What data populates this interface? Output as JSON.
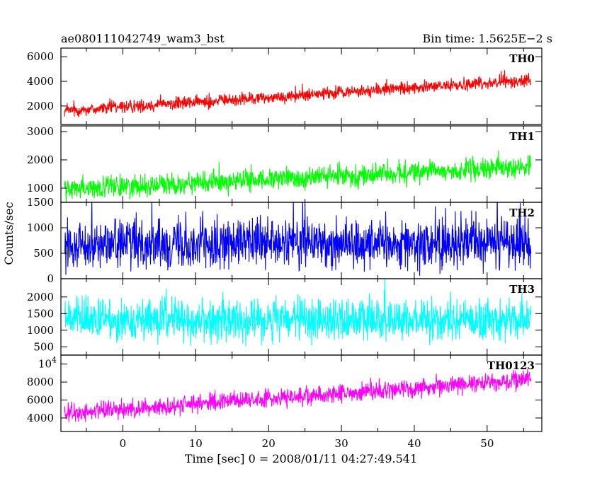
{
  "chart_data": {
    "type": "line",
    "title": "ae080111042749_wam3_bst",
    "bin_time_label": "Bin time: 1.5625E−2 s",
    "xlabel": "Time [sec] 0 = 2008/01/11 04:27:49.541",
    "ylabel": "Counts/sec",
    "xlim": [
      -8.5,
      57.5
    ],
    "x_ticks": [
      0,
      10,
      20,
      30,
      40,
      50
    ],
    "x_tick_labels": [
      "0",
      "10",
      "20",
      "30",
      "40",
      "50"
    ],
    "x_data_range": [
      -8,
      56
    ],
    "panels": [
      {
        "series_name": "TH0",
        "color": "#ff0000",
        "ylim": [
          500,
          6700
        ],
        "y_ticks": [
          2000,
          4000,
          6000
        ],
        "y_tick_labels": [
          "2000",
          "4000",
          "6000"
        ],
        "trend_start": 1600,
        "trend_end": 4100,
        "noise_amplitude": 750
      },
      {
        "series_name": "TH1",
        "color": "#00ff00",
        "ylim": [
          500,
          3200
        ],
        "y_ticks": [
          1000,
          2000,
          3000
        ],
        "y_tick_labels": [
          "1000",
          "2000",
          "3000"
        ],
        "trend_start": 950,
        "trend_end": 1750,
        "noise_amplitude": 550
      },
      {
        "series_name": "TH2",
        "color": "#0000ff",
        "ylim": [
          0,
          1500
        ],
        "y_ticks": [
          0,
          500,
          1000,
          1500
        ],
        "y_tick_labels": [
          "0",
          "500",
          "1000",
          "1500"
        ],
        "trend_start": 700,
        "trend_end": 700,
        "noise_amplitude": 700
      },
      {
        "series_name": "TH3",
        "color": "#00ffff",
        "ylim": [
          250,
          2550
        ],
        "y_ticks": [
          500,
          1000,
          1500,
          2000
        ],
        "y_tick_labels": [
          "500",
          "1000",
          "1500",
          "2000"
        ],
        "trend_start": 1300,
        "trend_end": 1300,
        "noise_amplitude": 900
      },
      {
        "series_name": "TH0123",
        "color": "#ff00ff",
        "ylim": [
          2500,
          11000
        ],
        "y_ticks": [
          4000,
          6000,
          8000,
          10000
        ],
        "y_tick_labels": [
          "4000",
          "6000",
          "8000",
          "10⁴"
        ],
        "trend_start": 4500,
        "trend_end": 8300,
        "noise_amplitude": 1500
      }
    ]
  }
}
